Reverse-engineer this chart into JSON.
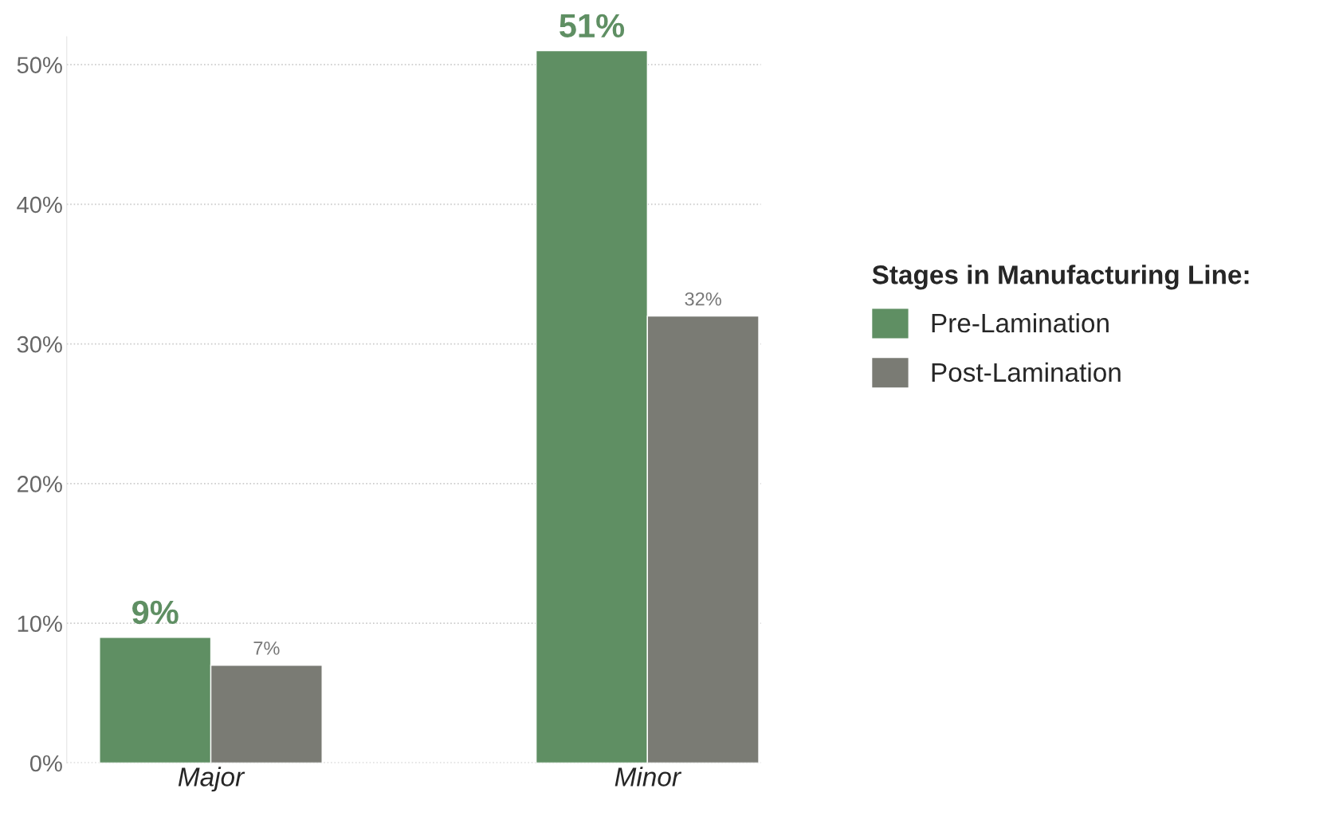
{
  "chart_data": {
    "type": "bar",
    "categories": [
      "Major",
      "Minor"
    ],
    "series": [
      {
        "name": "Pre-Lamination",
        "color": "#5f8f63",
        "values": [
          9,
          51
        ],
        "value_labels": [
          "9%",
          "51%"
        ]
      },
      {
        "name": "Post-Lamination",
        "color": "#7a7b74",
        "values": [
          7,
          32
        ],
        "value_labels": [
          "7%",
          "32%"
        ]
      }
    ],
    "ylim": [
      0,
      52
    ],
    "yticks": [
      {
        "value": 0,
        "label": "0%"
      },
      {
        "value": 10,
        "label": "10%"
      },
      {
        "value": 20,
        "label": "20%"
      },
      {
        "value": 30,
        "label": "30%"
      },
      {
        "value": 40,
        "label": "40%"
      },
      {
        "value": 50,
        "label": "50%"
      }
    ],
    "grid": "y",
    "legend": "right",
    "legend_title": "Stages in Manufacturing Line:"
  }
}
